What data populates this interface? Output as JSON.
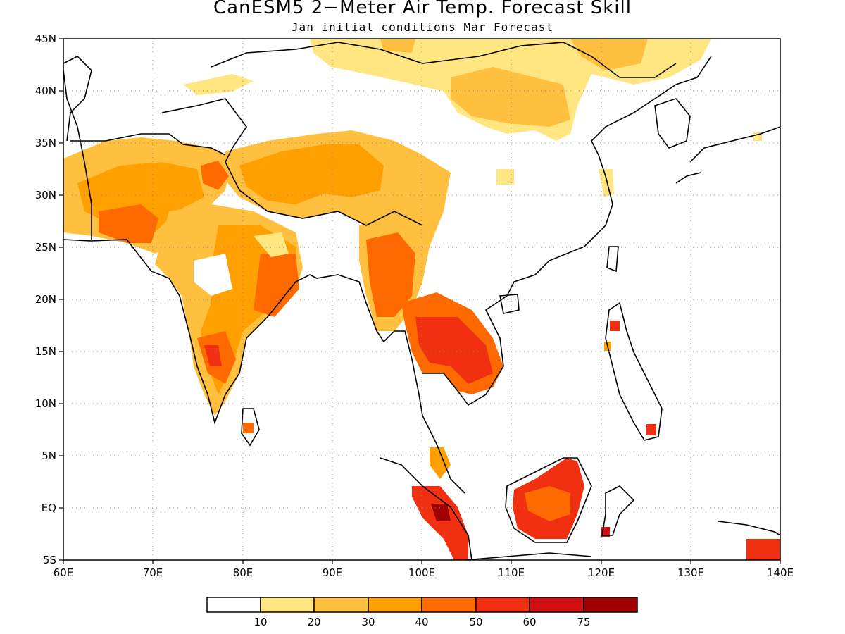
{
  "title": "CanESM5 2−Meter Air Temp. Forecast Skill",
  "subtitle": "Jan initial conditions  Mar Forecast",
  "map": {
    "lon_range": [
      60,
      140
    ],
    "lat_range": [
      -5,
      45
    ],
    "lon_labels": [
      "60E",
      "70E",
      "80E",
      "90E",
      "100E",
      "110E",
      "120E",
      "130E",
      "140E"
    ],
    "lat_labels": [
      "45N",
      "40N",
      "35N",
      "30N",
      "25N",
      "20N",
      "15N",
      "10N",
      "5N",
      "EQ",
      "5S"
    ],
    "grid": "dotted"
  },
  "colorbar": {
    "labels": [
      "10",
      "20",
      "30",
      "40",
      "50",
      "60",
      "75"
    ],
    "colors": [
      "#ffffff",
      "#ffe680",
      "#ffc040",
      "#ffa000",
      "#ff6a00",
      "#f03010",
      "#d01010",
      "#a00000"
    ]
  }
}
